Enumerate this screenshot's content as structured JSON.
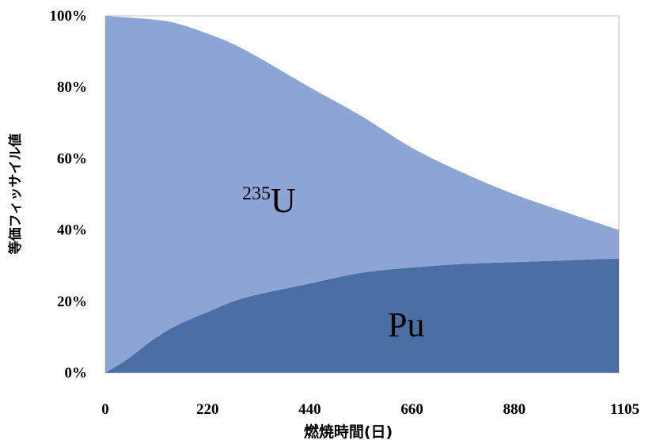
{
  "chart_data": {
    "type": "area",
    "stacked": true,
    "percent_scale": true,
    "xlabel": "燃焼時間(日)",
    "ylabel": "等価フィッサイル値",
    "x_ticks": [
      "0",
      "220",
      "440",
      "660",
      "880",
      "1105"
    ],
    "y_ticks": [
      "0%",
      "20%",
      "40%",
      "60%",
      "80%",
      "100%"
    ],
    "xlim": [
      0,
      1105
    ],
    "ylim": [
      0,
      100
    ],
    "grid": false,
    "legend": "none",
    "x": [
      0,
      50,
      100,
      150,
      220,
      300,
      440,
      550,
      660,
      770,
      880,
      990,
      1105
    ],
    "series": [
      {
        "name": "Pu",
        "label_main": "Pu",
        "color": "#4a6fa5",
        "values": [
          0,
          4,
          9,
          13,
          17,
          21,
          25,
          28,
          29.5,
          30.5,
          31,
          31.5,
          32
        ]
      },
      {
        "name": "235U",
        "label_sup": "235",
        "label_main": "U",
        "color": "#8da5d4",
        "values": [
          100,
          95.5,
          90,
          85,
          78,
          69.5,
          55,
          44,
          33.5,
          25.5,
          19,
          13.5,
          8
        ]
      }
    ]
  }
}
